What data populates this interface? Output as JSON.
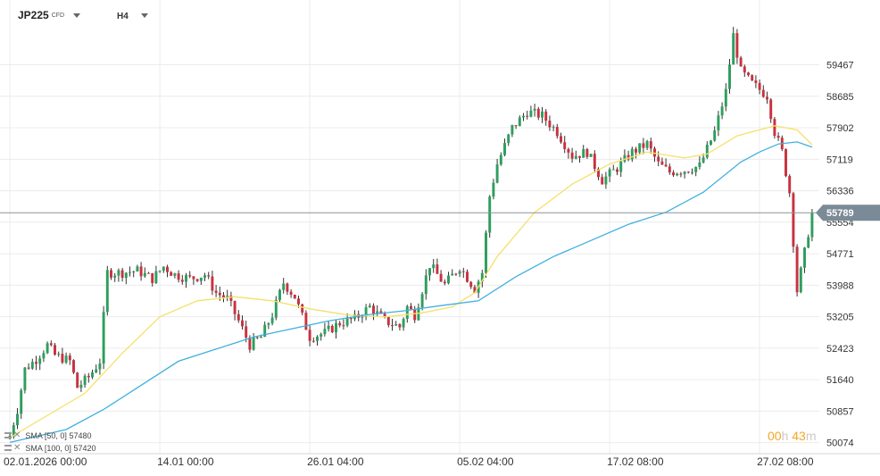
{
  "header": {
    "symbol": "JP225",
    "symbol_suffix": "CFD",
    "timeframe": "H4"
  },
  "legend": [
    {
      "label": "SMA [50, 0]",
      "value": "57480",
      "color": "#f5e06a"
    },
    {
      "label": "SMA [100, 0]",
      "value": "57420",
      "color": "#3fb0e0"
    }
  ],
  "countdown": {
    "hours": "00",
    "h_unit": "h",
    "minutes": "43",
    "m_unit": "m"
  },
  "chart_data": {
    "type": "candlestick",
    "timeframe": "H4",
    "current_price": 55789,
    "current_price_label": "55789",
    "current_price_color": "#7a8a96",
    "up_color": "#2e9e5e",
    "down_color": "#c8323f",
    "ylim": [
      49800,
      60900
    ],
    "y_ticks": [
      50074,
      50857,
      51640,
      52423,
      53205,
      53988,
      54771,
      55554,
      56336,
      57119,
      57902,
      58685,
      59467
    ],
    "x_ticks": [
      {
        "label": "02.01.2026  00:00",
        "bar": 0
      },
      {
        "label": "14.01  00:00",
        "bar": 40
      },
      {
        "label": "26.01  04:00",
        "bar": 80
      },
      {
        "label": "05.02  04:00",
        "bar": 120
      },
      {
        "label": "17.02  08:00",
        "bar": 160
      },
      {
        "label": "27.02  08:00",
        "bar": 200
      }
    ],
    "grid": true,
    "close_path": [
      [
        0,
        50250
      ],
      [
        2,
        50900
      ],
      [
        4,
        51900
      ],
      [
        7,
        52150
      ],
      [
        10,
        52500
      ],
      [
        12,
        52250
      ],
      [
        16,
        52100
      ],
      [
        18,
        51450
      ],
      [
        21,
        51700
      ],
      [
        24,
        52100
      ],
      [
        26,
        54300
      ],
      [
        30,
        54300
      ],
      [
        34,
        54350
      ],
      [
        38,
        54150
      ],
      [
        41,
        54450
      ],
      [
        44,
        54250
      ],
      [
        48,
        54150
      ],
      [
        52,
        54250
      ],
      [
        55,
        53800
      ],
      [
        58,
        53650
      ],
      [
        61,
        53100
      ],
      [
        64,
        52500
      ],
      [
        67,
        52700
      ],
      [
        70,
        53250
      ],
      [
        73,
        54050
      ],
      [
        76,
        53700
      ],
      [
        80,
        52700
      ],
      [
        84,
        52800
      ],
      [
        88,
        53050
      ],
      [
        92,
        53150
      ],
      [
        96,
        53450
      ],
      [
        100,
        53100
      ],
      [
        104,
        52950
      ],
      [
        106,
        53450
      ],
      [
        108,
        53250
      ],
      [
        112,
        54500
      ],
      [
        116,
        54000
      ],
      [
        120,
        54450
      ],
      [
        124,
        53900
      ],
      [
        126,
        54300
      ],
      [
        128,
        56200
      ],
      [
        130,
        57000
      ],
      [
        134,
        57900
      ],
      [
        138,
        58300
      ],
      [
        142,
        58200
      ],
      [
        146,
        57800
      ],
      [
        150,
        57200
      ],
      [
        154,
        57300
      ],
      [
        158,
        56600
      ],
      [
        162,
        56900
      ],
      [
        166,
        57300
      ],
      [
        170,
        57500
      ],
      [
        173,
        57000
      ],
      [
        176,
        56800
      ],
      [
        180,
        56850
      ],
      [
        184,
        56950
      ],
      [
        188,
        57800
      ],
      [
        191,
        58800
      ],
      [
        193,
        60200
      ],
      [
        195,
        59300
      ],
      [
        198,
        59000
      ],
      [
        202,
        58700
      ],
      [
        204,
        57800
      ],
      [
        206,
        57300
      ],
      [
        208,
        56300
      ],
      [
        210,
        53850
      ],
      [
        212,
        54800
      ],
      [
        214,
        55789
      ]
    ],
    "series": [
      {
        "name": "SMA [50, 0]",
        "color": "#f5e06a",
        "last_value": 57480,
        "points": [
          [
            0,
            50200
          ],
          [
            20,
            51300
          ],
          [
            30,
            52300
          ],
          [
            40,
            53200
          ],
          [
            50,
            53600
          ],
          [
            60,
            53700
          ],
          [
            70,
            53600
          ],
          [
            80,
            53400
          ],
          [
            90,
            53250
          ],
          [
            100,
            53200
          ],
          [
            110,
            53300
          ],
          [
            118,
            53450
          ],
          [
            124,
            53800
          ],
          [
            130,
            54700
          ],
          [
            140,
            55800
          ],
          [
            150,
            56500
          ],
          [
            160,
            57000
          ],
          [
            170,
            57300
          ],
          [
            180,
            57150
          ],
          [
            186,
            57250
          ],
          [
            194,
            57700
          ],
          [
            200,
            57850
          ],
          [
            204,
            57950
          ],
          [
            210,
            57850
          ],
          [
            214,
            57480
          ]
        ]
      },
      {
        "name": "SMA [100, 0]",
        "color": "#3fb0e0",
        "last_value": 57420,
        "points": [
          [
            0,
            50080
          ],
          [
            15,
            50400
          ],
          [
            25,
            50900
          ],
          [
            35,
            51500
          ],
          [
            45,
            52100
          ],
          [
            55,
            52400
          ],
          [
            65,
            52700
          ],
          [
            75,
            52900
          ],
          [
            85,
            53100
          ],
          [
            95,
            53250
          ],
          [
            105,
            53350
          ],
          [
            115,
            53480
          ],
          [
            125,
            53600
          ],
          [
            135,
            54200
          ],
          [
            145,
            54700
          ],
          [
            155,
            55100
          ],
          [
            165,
            55500
          ],
          [
            175,
            55800
          ],
          [
            185,
            56300
          ],
          [
            195,
            57050
          ],
          [
            200,
            57300
          ],
          [
            205,
            57500
          ],
          [
            210,
            57550
          ],
          [
            214,
            57420
          ]
        ]
      }
    ]
  }
}
